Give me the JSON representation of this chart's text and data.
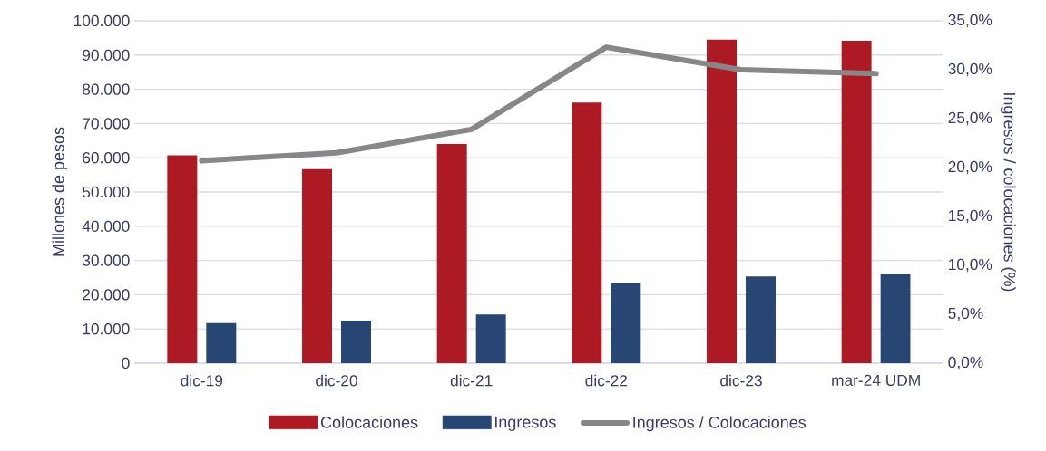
{
  "chart_data": {
    "type": "bar",
    "categories": [
      "dic-19",
      "dic-20",
      "dic-21",
      "dic-22",
      "dic-23",
      "mar-24 UDM"
    ],
    "series": [
      {
        "name": "Colocaciones",
        "color": "#ae1a24",
        "values": [
          60700,
          56700,
          64000,
          76100,
          94500,
          94200
        ]
      },
      {
        "name": "Ingresos",
        "color": "#284674",
        "values": [
          11700,
          12400,
          14200,
          23400,
          25300,
          25900
        ]
      },
      {
        "name": "Ingresos / Colocaciones",
        "color": "#878787",
        "type": "line",
        "axis": "y2",
        "values": [
          20.7,
          21.5,
          23.9,
          32.3,
          30.0,
          29.6
        ]
      }
    ],
    "ylabel": "Millones de pesos",
    "y2label": "Ingresos / colocaciones (%)",
    "ylim": [
      0,
      100000
    ],
    "yticks": [
      {
        "value": 0,
        "label": "0"
      },
      {
        "value": 10000,
        "label": "10.000"
      },
      {
        "value": 20000,
        "label": "20.000"
      },
      {
        "value": 30000,
        "label": "30.000"
      },
      {
        "value": 40000,
        "label": "40.000"
      },
      {
        "value": 50000,
        "label": "50.000"
      },
      {
        "value": 60000,
        "label": "60.000"
      },
      {
        "value": 70000,
        "label": "70.000"
      },
      {
        "value": 80000,
        "label": "80.000"
      },
      {
        "value": 90000,
        "label": "90.000"
      },
      {
        "value": 100000,
        "label": "100.000"
      }
    ],
    "y2lim": [
      0,
      35
    ],
    "y2ticks": [
      {
        "value": 0,
        "label": "0,0%"
      },
      {
        "value": 5,
        "label": "5,0%"
      },
      {
        "value": 10,
        "label": "10,0%"
      },
      {
        "value": 15,
        "label": "15,0%"
      },
      {
        "value": 20,
        "label": "20,0%"
      },
      {
        "value": 25,
        "label": "25,0%"
      },
      {
        "value": 30,
        "label": "30,0%"
      },
      {
        "value": 35,
        "label": "35,0%"
      }
    ],
    "grid": "y",
    "legend": "bottom"
  }
}
